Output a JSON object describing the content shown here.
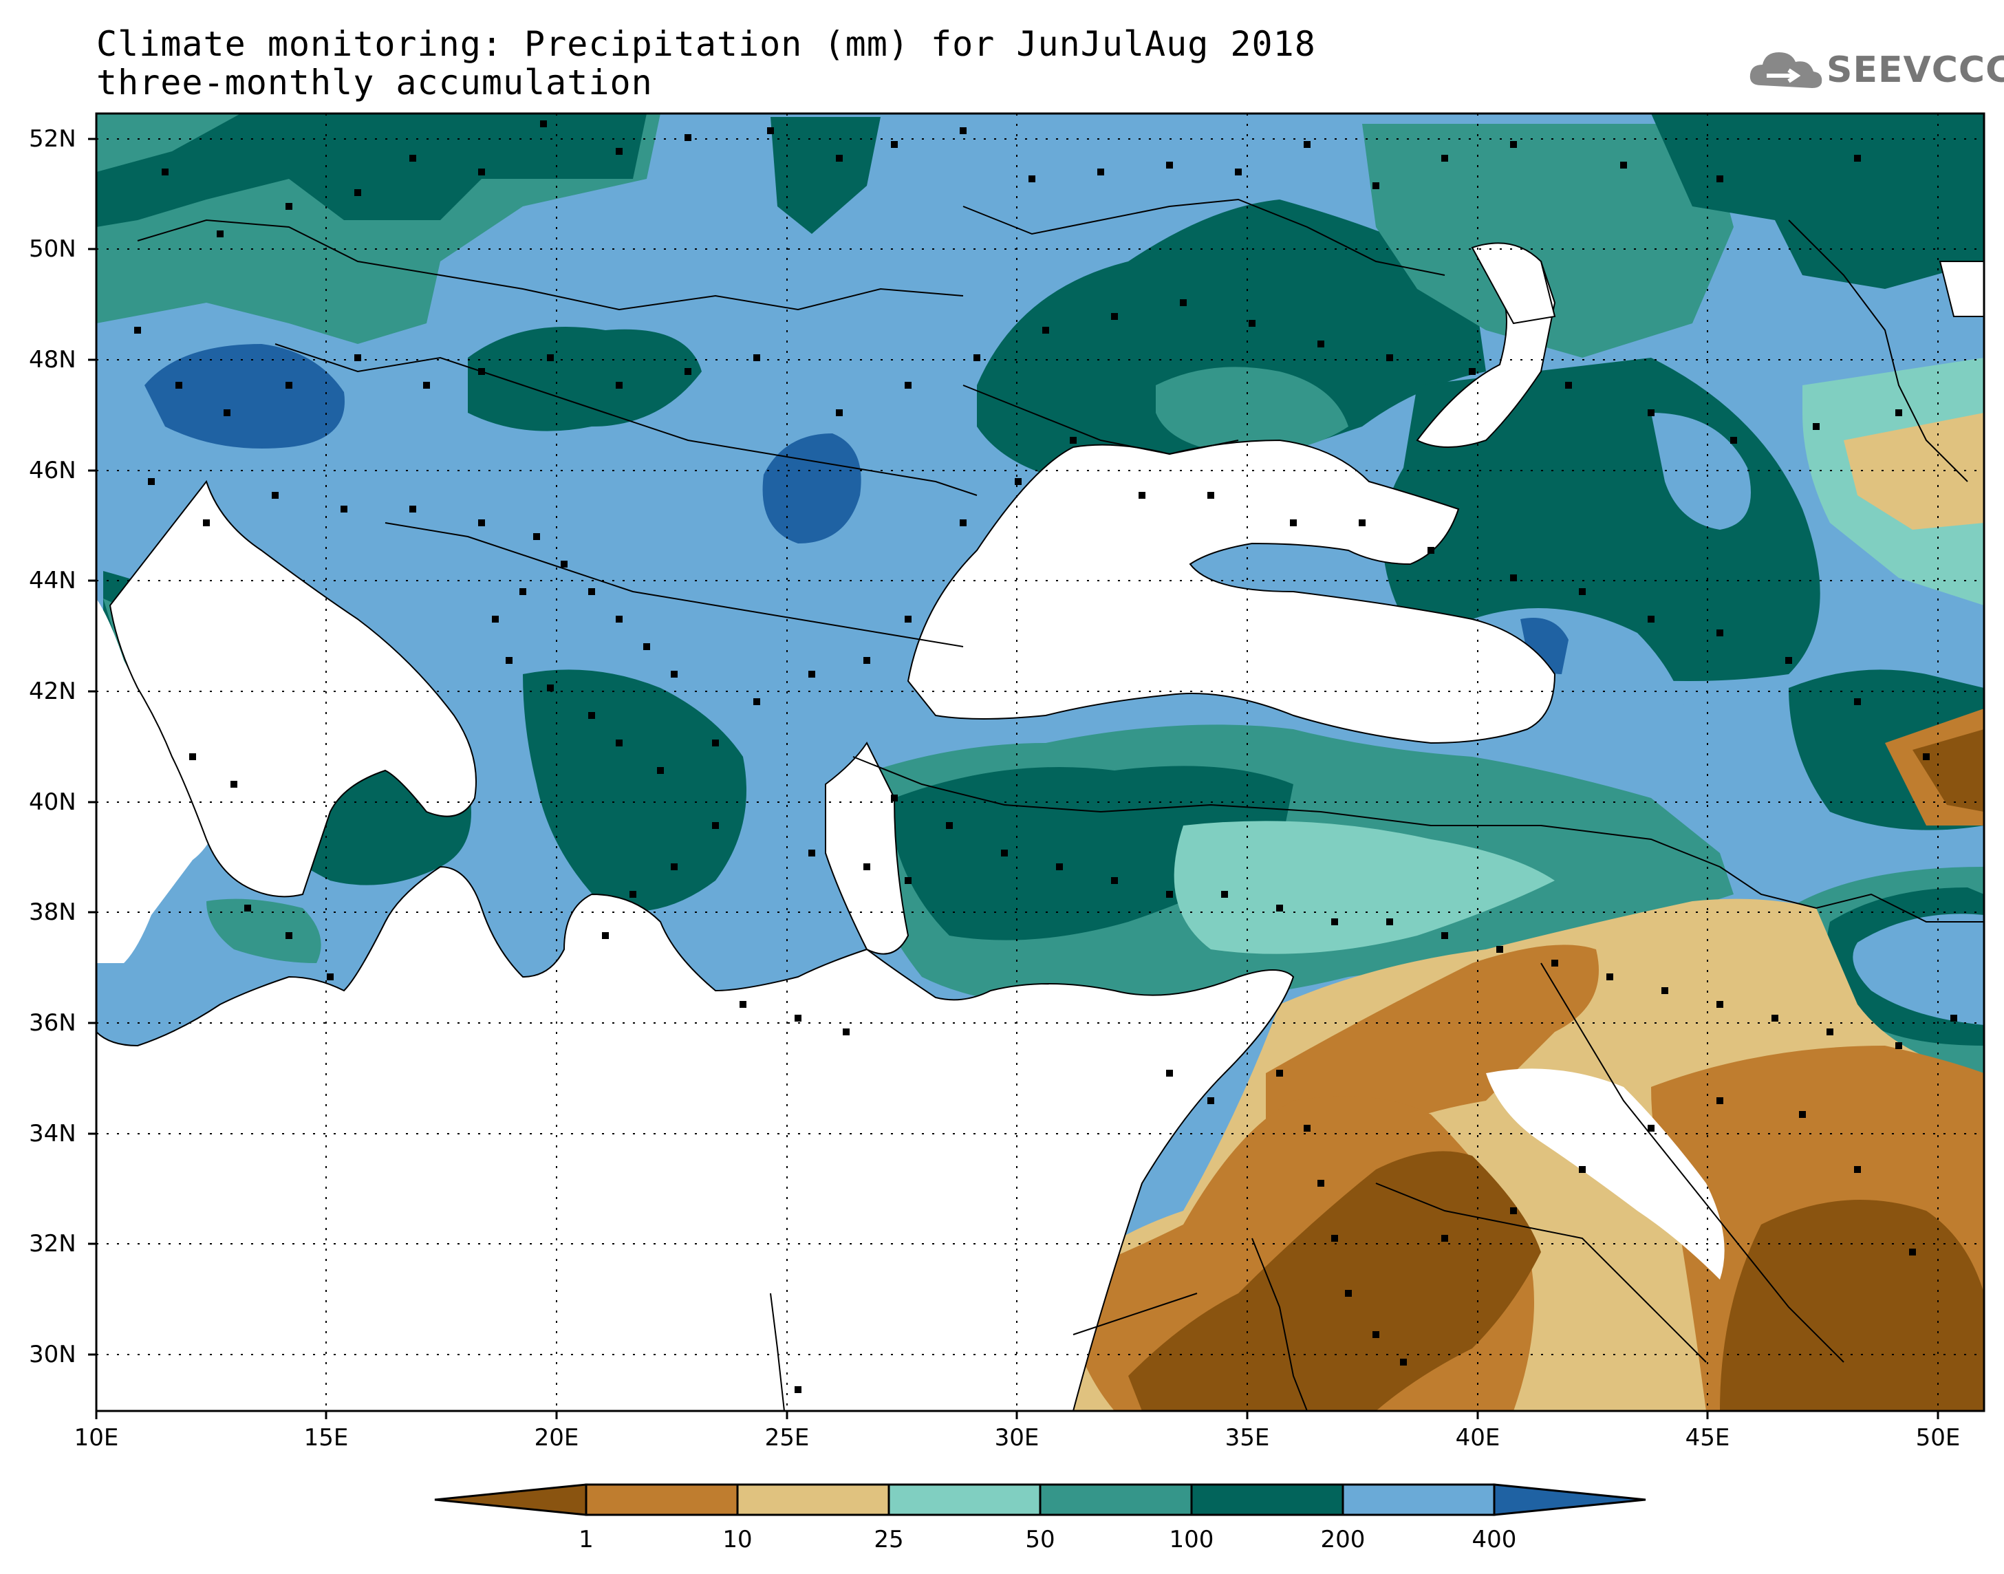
{
  "title": {
    "line1": "Climate monitoring: Precipitation (mm) for JunJulAug 2018",
    "line2": "three-monthly accumulation"
  },
  "logo": {
    "text": "SEEVCCC",
    "icon": "cloud-logo-icon"
  },
  "map": {
    "lat_ticks": [
      "52N",
      "50N",
      "48N",
      "46N",
      "44N",
      "42N",
      "40N",
      "38N",
      "36N",
      "34N",
      "32N",
      "30N"
    ],
    "lon_ticks": [
      "10E",
      "15E",
      "20E",
      "25E",
      "30E",
      "35E",
      "40E",
      "45E",
      "50E"
    ],
    "lat_range": [
      29,
      52.5
    ],
    "lon_range": [
      10,
      51
    ],
    "grid": "dotted",
    "stations": "black square markers"
  },
  "legend": {
    "labels": [
      "1",
      "10",
      "25",
      "50",
      "100",
      "200",
      "400"
    ],
    "colors": [
      "#8a5410",
      "#bf7d2f",
      "#e0c27f",
      "#80cfc1",
      "#35968a",
      "#02645b",
      "#6aaad7",
      "#1f62a3"
    ]
  },
  "colors": {
    "darkbrown": "#8a5410",
    "brown": "#bf7d2f",
    "tan": "#e0c27f",
    "lightteal": "#80cfc1",
    "teal": "#35968a",
    "darkteal": "#02645b",
    "lightblue": "#6aaad7",
    "darkblue": "#1f62a3"
  }
}
